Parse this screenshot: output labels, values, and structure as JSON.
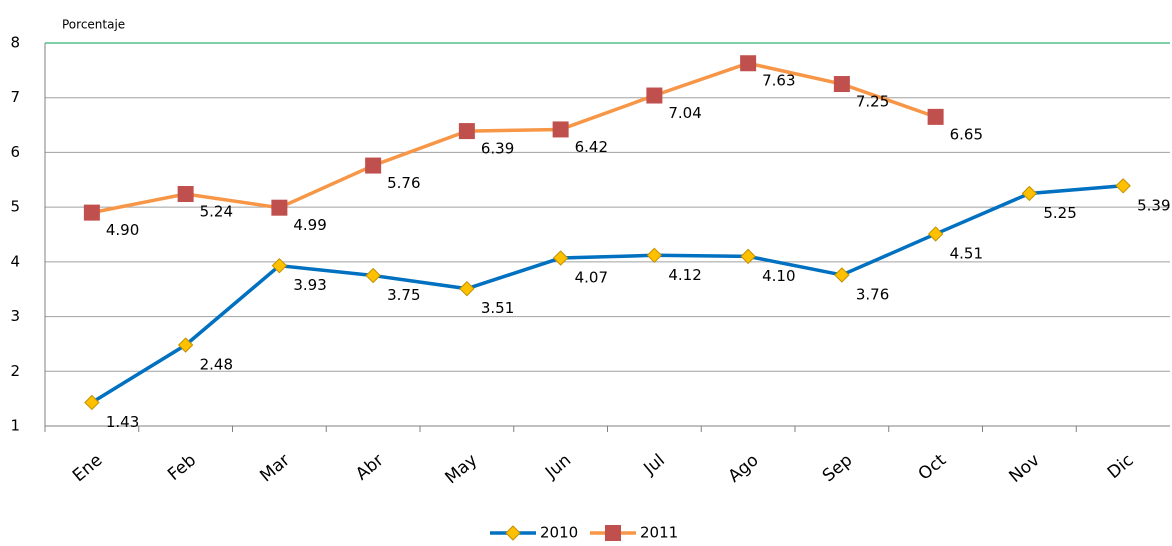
{
  "chart_data": {
    "type": "line",
    "y_axis_label": "Porcentaje",
    "categories": [
      "Ene",
      "Feb",
      "Mar",
      "Abr",
      "May",
      "Jun",
      "Jul",
      "Ago",
      "Sep",
      "Oct",
      "Nov",
      "Dic"
    ],
    "series": [
      {
        "name": "2010",
        "color": "#0070c0",
        "marker_color": "#ffc000",
        "values": [
          1.43,
          2.48,
          3.93,
          3.75,
          3.51,
          4.07,
          4.12,
          4.1,
          3.76,
          4.51,
          5.25,
          5.39
        ],
        "value_labels": [
          "1.43",
          "2.48",
          "3.93",
          "3.75",
          "3.51",
          "4.07",
          "4.12",
          "4.10",
          "3.76",
          "4.51",
          "5.25",
          "5.39"
        ]
      },
      {
        "name": "2011",
        "color": "#f79646",
        "marker_color": "#c0504d",
        "values": [
          4.9,
          5.24,
          4.99,
          5.76,
          6.39,
          6.42,
          7.04,
          7.63,
          7.25,
          6.65,
          null,
          null
        ],
        "value_labels": [
          "4.90",
          "5.24",
          "4.99",
          "5.76",
          "6.39",
          "6.42",
          "7.04",
          "7.63",
          "7.25",
          "6.65",
          null,
          null
        ]
      }
    ],
    "ylim": [
      1,
      8
    ],
    "yticks": [
      1,
      2,
      3,
      4,
      5,
      6,
      7,
      8
    ],
    "grid": true,
    "legend": "bottom"
  }
}
